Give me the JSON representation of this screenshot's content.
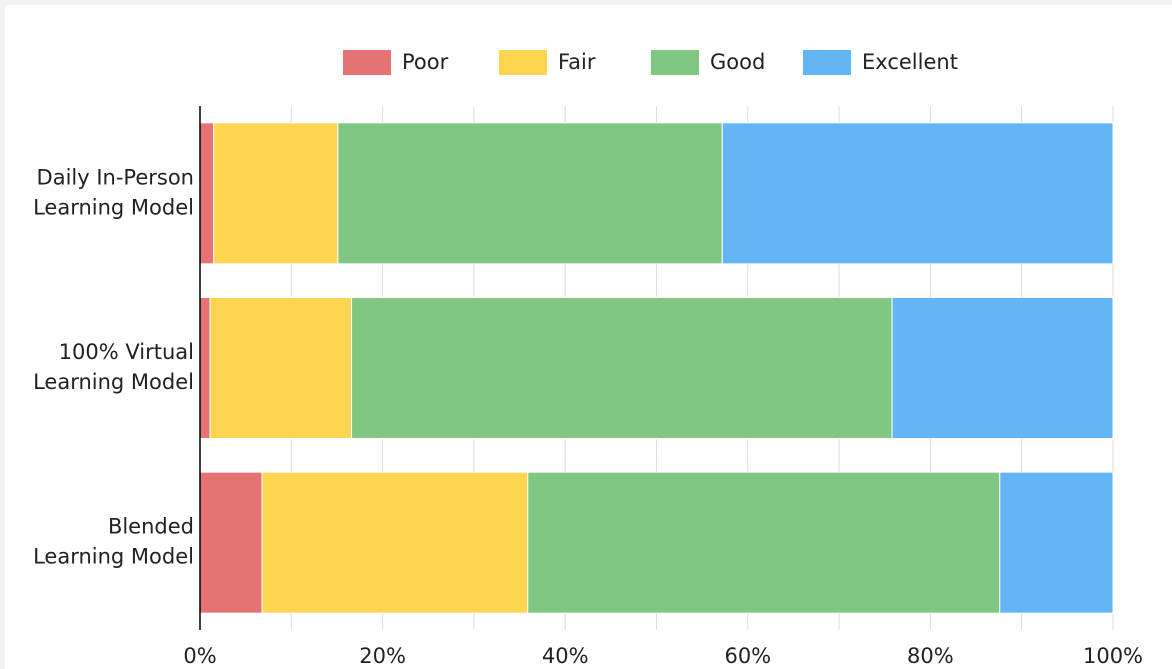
{
  "chart_data": {
    "type": "stacked_bar_horizontal",
    "categories": [
      [
        "Daily In-Person",
        "Learning Model"
      ],
      [
        "100% Virtual",
        "Learning Model"
      ],
      [
        "Blended",
        "Learning Model"
      ]
    ],
    "series": [
      {
        "name": "Poor",
        "color": "#e57373",
        "values": [
          1.5,
          1.1,
          6.8
        ]
      },
      {
        "name": "Fair",
        "color": "#ffd54f",
        "values": [
          13.6,
          15.5,
          29.1
        ]
      },
      {
        "name": "Good",
        "color": "#81c784",
        "values": [
          42.1,
          59.2,
          51.7
        ]
      },
      {
        "name": "Excellent",
        "color": "#64b5f6",
        "values": [
          42.8,
          24.2,
          12.4
        ]
      }
    ],
    "xlim": [
      0,
      100
    ],
    "xticks": [
      {
        "value": 0,
        "label": "0%"
      },
      {
        "value": 20,
        "label": "20%"
      },
      {
        "value": 40,
        "label": "40%"
      },
      {
        "value": 60,
        "label": "60%"
      },
      {
        "value": 80,
        "label": "80%"
      },
      {
        "value": 100,
        "label": "100%"
      }
    ],
    "minor_xticks": [
      10,
      30,
      50,
      70,
      90
    ],
    "grid": true,
    "legend": "top"
  }
}
